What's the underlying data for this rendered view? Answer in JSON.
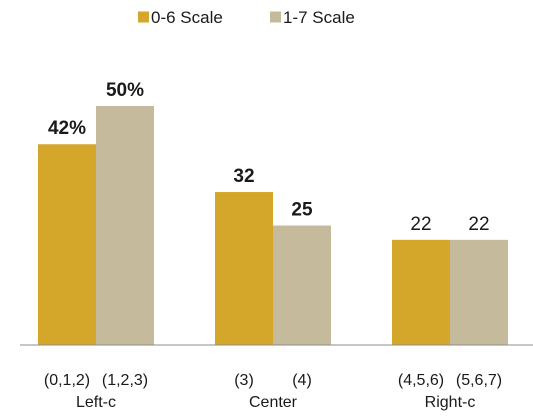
{
  "chart_data": {
    "type": "bar",
    "categories": [
      "Left-c",
      "Center",
      "Right-c"
    ],
    "sub_labels": [
      [
        "(0,1,2)",
        "(1,2,3)"
      ],
      [
        "(3)",
        "(4)"
      ],
      [
        "(4,5,6)",
        "(5,6,7)"
      ]
    ],
    "series": [
      {
        "name": "0-6 Scale",
        "color": "#D4A62A",
        "values": [
          42,
          32,
          22
        ],
        "labels": [
          "42%",
          "32",
          "22"
        ]
      },
      {
        "name": "1-7 Scale",
        "color": "#C5BB9C",
        "values": [
          50,
          25,
          22
        ],
        "labels": [
          "50%",
          "25",
          "22"
        ]
      }
    ],
    "label_bold": [
      [
        true,
        true,
        false
      ],
      [
        true,
        true,
        false
      ]
    ],
    "ylim": [
      0,
      60
    ],
    "grid": false,
    "legend_position": "top-center",
    "title": "",
    "xlabel": "",
    "ylabel": ""
  }
}
